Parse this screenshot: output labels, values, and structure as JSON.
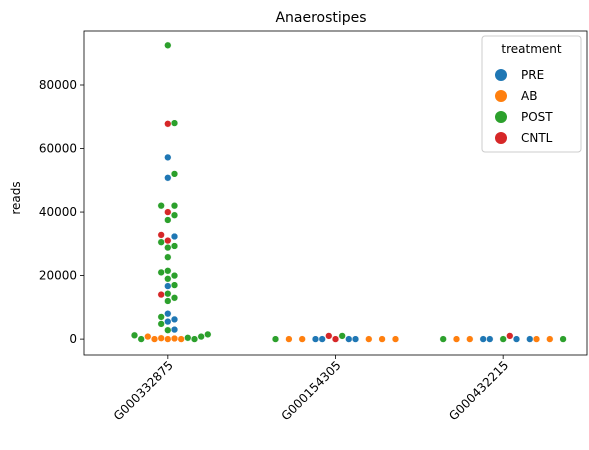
{
  "chart_data": {
    "type": "scatter",
    "subtype": "swarm",
    "title": "Anaerostipes",
    "xlabel": "",
    "ylabel": "reads",
    "categories": [
      "G000332875",
      "G000154305",
      "G000432215"
    ],
    "ylim": [
      -5000,
      97000
    ],
    "yticks": [
      0,
      20000,
      40000,
      60000,
      80000
    ],
    "grid": false,
    "legend": {
      "title": "treatment",
      "placement": "top-right"
    },
    "series": [
      {
        "name": "PRE",
        "color": "#1f77b4",
        "points": [
          {
            "x": "G000332875",
            "y": 57200
          },
          {
            "x": "G000332875",
            "y": 50800
          },
          {
            "x": "G000332875",
            "y": 32300
          },
          {
            "x": "G000332875",
            "y": 16700
          },
          {
            "x": "G000332875",
            "y": 8000
          },
          {
            "x": "G000332875",
            "y": 6200
          },
          {
            "x": "G000332875",
            "y": 5500
          },
          {
            "x": "G000332875",
            "y": 3000
          },
          {
            "x": "G000154305",
            "y": 0
          },
          {
            "x": "G000154305",
            "y": 0
          },
          {
            "x": "G000154305",
            "y": 0
          },
          {
            "x": "G000154305",
            "y": 0
          },
          {
            "x": "G000154305",
            "y": 0
          },
          {
            "x": "G000432215",
            "y": 0
          },
          {
            "x": "G000432215",
            "y": 0
          },
          {
            "x": "G000432215",
            "y": 0
          },
          {
            "x": "G000432215",
            "y": 0
          },
          {
            "x": "G000432215",
            "y": 0
          }
        ]
      },
      {
        "name": "AB",
        "color": "#ff7f0e",
        "points": [
          {
            "x": "G000332875",
            "y": 800
          },
          {
            "x": "G000332875",
            "y": 300
          },
          {
            "x": "G000332875",
            "y": 0
          },
          {
            "x": "G000332875",
            "y": 0
          },
          {
            "x": "G000332875",
            "y": 0
          },
          {
            "x": "G000332875",
            "y": 200
          },
          {
            "x": "G000154305",
            "y": 0
          },
          {
            "x": "G000154305",
            "y": 0
          },
          {
            "x": "G000154305",
            "y": 0
          },
          {
            "x": "G000154305",
            "y": 0
          },
          {
            "x": "G000154305",
            "y": 0
          },
          {
            "x": "G000432215",
            "y": 0
          },
          {
            "x": "G000432215",
            "y": 0
          },
          {
            "x": "G000432215",
            "y": 0
          },
          {
            "x": "G000432215",
            "y": 0
          }
        ]
      },
      {
        "name": "POST",
        "color": "#2ca02c",
        "points": [
          {
            "x": "G000332875",
            "y": 92500
          },
          {
            "x": "G000332875",
            "y": 68000
          },
          {
            "x": "G000332875",
            "y": 52000
          },
          {
            "x": "G000332875",
            "y": 42000
          },
          {
            "x": "G000332875",
            "y": 42000
          },
          {
            "x": "G000332875",
            "y": 39000
          },
          {
            "x": "G000332875",
            "y": 37500
          },
          {
            "x": "G000332875",
            "y": 30500
          },
          {
            "x": "G000332875",
            "y": 29300
          },
          {
            "x": "G000332875",
            "y": 28800
          },
          {
            "x": "G000332875",
            "y": 25800
          },
          {
            "x": "G000332875",
            "y": 21500
          },
          {
            "x": "G000332875",
            "y": 21000
          },
          {
            "x": "G000332875",
            "y": 20000
          },
          {
            "x": "G000332875",
            "y": 19000
          },
          {
            "x": "G000332875",
            "y": 17000
          },
          {
            "x": "G000332875",
            "y": 14300
          },
          {
            "x": "G000332875",
            "y": 13000
          },
          {
            "x": "G000332875",
            "y": 12000
          },
          {
            "x": "G000332875",
            "y": 7000
          },
          {
            "x": "G000332875",
            "y": 4800
          },
          {
            "x": "G000332875",
            "y": 2800
          },
          {
            "x": "G000332875",
            "y": 1500
          },
          {
            "x": "G000332875",
            "y": 1200
          },
          {
            "x": "G000332875",
            "y": 800
          },
          {
            "x": "G000332875",
            "y": 400
          },
          {
            "x": "G000332875",
            "y": 0
          },
          {
            "x": "G000332875",
            "y": 0
          },
          {
            "x": "G000154305",
            "y": 1000
          },
          {
            "x": "G000154305",
            "y": 0
          },
          {
            "x": "G000154305",
            "y": 0
          },
          {
            "x": "G000154305",
            "y": 0
          },
          {
            "x": "G000154305",
            "y": 0
          },
          {
            "x": "G000154305",
            "y": 0
          },
          {
            "x": "G000154305",
            "y": 0
          },
          {
            "x": "G000154305",
            "y": 0
          },
          {
            "x": "G000154305",
            "y": 0
          },
          {
            "x": "G000154305",
            "y": 0
          },
          {
            "x": "G000154305",
            "y": 0
          },
          {
            "x": "G000432215",
            "y": 0
          },
          {
            "x": "G000432215",
            "y": 0
          },
          {
            "x": "G000432215",
            "y": 0
          },
          {
            "x": "G000432215",
            "y": 0
          },
          {
            "x": "G000432215",
            "y": 0
          },
          {
            "x": "G000432215",
            "y": 0
          },
          {
            "x": "G000432215",
            "y": 0
          },
          {
            "x": "G000432215",
            "y": 0
          },
          {
            "x": "G000432215",
            "y": 0
          },
          {
            "x": "G000432215",
            "y": 0
          },
          {
            "x": "G000432215",
            "y": 0
          },
          {
            "x": "G000432215",
            "y": 0
          }
        ]
      },
      {
        "name": "CNTL",
        "color": "#d62728",
        "points": [
          {
            "x": "G000332875",
            "y": 67800
          },
          {
            "x": "G000332875",
            "y": 40000
          },
          {
            "x": "G000332875",
            "y": 32800
          },
          {
            "x": "G000332875",
            "y": 31000
          },
          {
            "x": "G000332875",
            "y": 14000
          },
          {
            "x": "G000154305",
            "y": 1000
          },
          {
            "x": "G000154305",
            "y": 0
          },
          {
            "x": "G000154305",
            "y": 0
          },
          {
            "x": "G000432215",
            "y": 1000
          }
        ]
      }
    ]
  }
}
